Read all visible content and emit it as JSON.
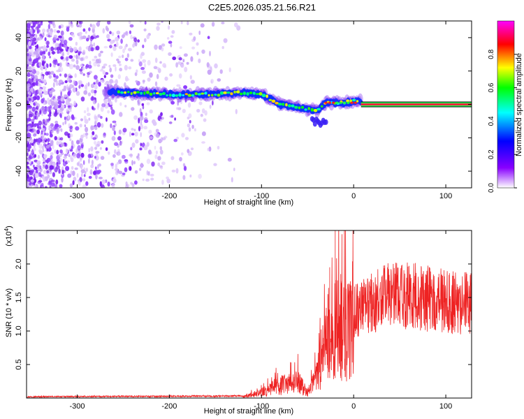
{
  "title": "C2E5.2026.035.21.56.R21",
  "chart_data": [
    {
      "type": "heatmap",
      "xlabel": "Height of straight line (km)",
      "ylabel": "Frequency (Hz)",
      "xlim": [
        -355,
        128
      ],
      "ylim": [
        -50,
        50
      ],
      "xticks": [
        -300,
        -200,
        -100,
        0,
        100
      ],
      "yticks": [
        -40,
        -20,
        0,
        20,
        40
      ],
      "colorbar": {
        "label": "Normalized spectral amplitude",
        "range": [
          0,
          1
        ],
        "ticks": [
          "0.0",
          "0.2",
          "0.4",
          "0.6",
          "0.8"
        ],
        "colors": [
          "#ffffff",
          "#8800ff",
          "#0000ff",
          "#00ffff",
          "#00ff00",
          "#ffff00",
          "#ff0000",
          "#ff00ff"
        ]
      },
      "ridge": {
        "x": [
          -270,
          -250,
          -200,
          -150,
          -120,
          -100,
          -80,
          -60,
          -40,
          -30,
          -20,
          -10,
          0,
          128
        ],
        "freq": [
          8,
          7,
          6,
          6,
          7,
          6,
          0,
          -2,
          -4,
          1,
          1,
          1,
          2,
          0
        ]
      }
    },
    {
      "type": "line",
      "xlabel": "Height of straight line (km)",
      "ylabel": "SNR (10 * v/v)",
      "yscale_label": "(x10",
      "yscale_exp": "4",
      "xlim": [
        -355,
        128
      ],
      "ylim": [
        0,
        2.5
      ],
      "xticks": [
        -300,
        -200,
        -100,
        0,
        100
      ],
      "yticks": [
        "0.5",
        "1.0",
        "1.5",
        "2.0"
      ],
      "color": "#ee2222",
      "envelope": {
        "x": [
          -355,
          -120,
          -100,
          -80,
          -60,
          -50,
          -40,
          -30,
          -20,
          -10,
          0,
          20,
          40,
          60,
          80,
          100,
          128
        ],
        "y": [
          0.02,
          0.03,
          0.12,
          0.28,
          0.35,
          0.12,
          0.45,
          1.2,
          1.55,
          1.45,
          1.55,
          1.75,
          1.85,
          1.85,
          1.8,
          1.75,
          1.7
        ]
      }
    }
  ]
}
